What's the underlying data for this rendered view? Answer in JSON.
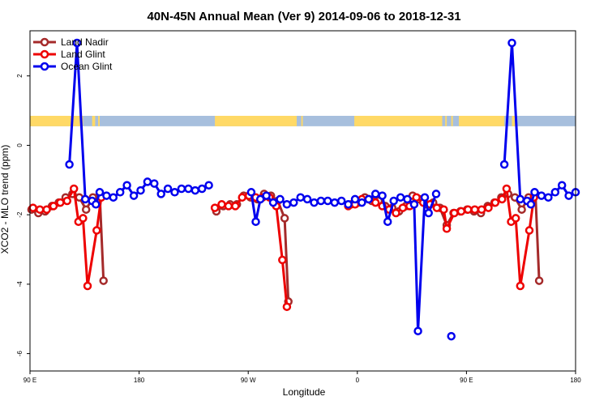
{
  "chart_data": {
    "type": "line",
    "title": "40N-45N Annual Mean (Ver 9)   2014-09-06 to 2018-12-31",
    "xlabel": "Longitude",
    "ylabel": "XCO2 - MLO trend (ppm)",
    "xlim": [
      -90,
      270
    ],
    "ylim": [
      -6.5,
      3.3
    ],
    "x_ticks": [
      {
        "value": -90,
        "label": "90 E"
      },
      {
        "value": -18,
        "label": "180"
      },
      {
        "value": 54,
        "label": "90 W"
      },
      {
        "value": 126,
        "label": "0"
      },
      {
        "value": 198,
        "label": "90 E"
      },
      {
        "value": 270,
        "label": "180"
      }
    ],
    "y_ticks": [
      {
        "value": 2,
        "label": "2"
      },
      {
        "value": 0,
        "label": "0"
      },
      {
        "value": -2,
        "label": "-2"
      },
      {
        "value": -4,
        "label": "-4"
      },
      {
        "value": -6,
        "label": "-6"
      }
    ],
    "legend": [
      "Land Nadir",
      "Land Glint",
      "Ocean Glint"
    ],
    "legend_position": "top-left",
    "land_band": {
      "y_range": [
        0.55,
        0.85
      ],
      "land_color": "#FFD966",
      "ocean_color": "#A7BFDD",
      "land_segments": [
        [
          -90,
          -55
        ],
        [
          -49,
          -47
        ],
        [
          -45,
          -44
        ],
        [
          32,
          86
        ],
        [
          89,
          90
        ],
        [
          124,
          182
        ],
        [
          184,
          185
        ],
        [
          188,
          189
        ],
        [
          193,
          223
        ],
        [
          228,
          230
        ]
      ]
    },
    "series": [
      {
        "name": "Land Nadir",
        "color": "#A52A2A",
        "points": [
          [
            -89,
            -1.85
          ],
          [
            -84.5,
            -1.95
          ],
          [
            -80,
            -1.9
          ],
          [
            -75.5,
            -1.75
          ],
          [
            -71,
            -1.65
          ],
          [
            -66.5,
            -1.5
          ],
          [
            -62,
            -1.4
          ],
          [
            -57.5,
            -1.5
          ],
          [
            -53,
            -1.85
          ],
          [
            -48.5,
            -1.5
          ],
          [
            -44,
            -1.4
          ],
          [
            -41.5,
            -3.9
          ],
          null,
          [
            33,
            -1.9
          ],
          [
            37.5,
            -1.75
          ],
          [
            42,
            -1.7
          ],
          [
            46.5,
            -1.7
          ],
          [
            51,
            -1.45
          ],
          [
            55.5,
            -1.5
          ],
          [
            60,
            -1.55
          ],
          [
            64.5,
            -1.4
          ],
          [
            69,
            -1.45
          ],
          [
            73.5,
            -1.6
          ],
          [
            78,
            -2.1
          ],
          [
            80.5,
            -4.5
          ],
          null,
          [
            122,
            -1.7
          ],
          [
            126.5,
            -1.65
          ],
          [
            131,
            -1.5
          ],
          [
            135.5,
            -1.6
          ],
          [
            140,
            -1.6
          ],
          [
            144.5,
            -1.75
          ],
          [
            149,
            -1.8
          ],
          [
            153.5,
            -1.9
          ],
          [
            158,
            -1.75
          ],
          [
            162.5,
            -1.45
          ],
          [
            167,
            -1.55
          ],
          [
            171.5,
            -1.7
          ],
          [
            176,
            -1.65
          ],
          [
            180.5,
            -1.8
          ],
          [
            185,
            -2.3
          ],
          [
            189.5,
            -1.95
          ],
          [
            194,
            -1.9
          ],
          [
            198.5,
            -1.85
          ],
          [
            203,
            -1.9
          ],
          [
            207.5,
            -1.95
          ],
          [
            212,
            -1.75
          ],
          [
            216.5,
            -1.65
          ],
          [
            221,
            -1.5
          ],
          [
            225.5,
            -1.4
          ],
          [
            230,
            -1.5
          ],
          [
            234.5,
            -1.85
          ],
          [
            239,
            -1.5
          ],
          [
            243.5,
            -1.4
          ],
          [
            246,
            -3.9
          ]
        ]
      },
      {
        "name": "Land Glint",
        "color": "#EE0000",
        "points": [
          [
            -88,
            -1.8
          ],
          [
            -83.5,
            -1.85
          ],
          [
            -79,
            -1.85
          ],
          [
            -74.5,
            -1.75
          ],
          [
            -70,
            -1.65
          ],
          [
            -65.5,
            -1.6
          ],
          [
            -61,
            -1.25
          ],
          [
            -58,
            -2.2
          ],
          [
            -55,
            -2.1
          ],
          [
            -52,
            -4.05
          ],
          [
            -46,
            -2.45
          ],
          [
            -43,
            -1.5
          ],
          null,
          [
            32,
            -1.8
          ],
          [
            36.5,
            -1.7
          ],
          [
            41,
            -1.75
          ],
          [
            45.5,
            -1.75
          ],
          [
            50,
            -1.5
          ],
          [
            54.5,
            -1.45
          ],
          [
            59,
            -1.5
          ],
          [
            63.5,
            -1.5
          ],
          [
            68,
            -1.5
          ],
          [
            72.5,
            -1.75
          ],
          [
            76.5,
            -3.3
          ],
          [
            79.5,
            -4.65
          ],
          null,
          [
            120,
            -1.75
          ],
          [
            124.5,
            -1.7
          ],
          [
            129,
            -1.55
          ],
          [
            133.5,
            -1.55
          ],
          [
            138,
            -1.65
          ],
          [
            142.5,
            -1.75
          ],
          [
            147,
            -1.85
          ],
          [
            151.5,
            -1.95
          ],
          [
            156,
            -1.8
          ],
          [
            160.5,
            -1.75
          ],
          [
            165,
            -1.5
          ],
          [
            169.5,
            -1.65
          ],
          [
            174,
            -1.7
          ],
          [
            178.5,
            -1.8
          ],
          [
            183,
            -1.85
          ],
          [
            185,
            -2.4
          ],
          [
            190,
            -1.95
          ],
          [
            194.5,
            -1.9
          ],
          [
            199,
            -1.85
          ],
          [
            203.5,
            -1.85
          ],
          [
            208,
            -1.85
          ],
          [
            212.5,
            -1.8
          ],
          [
            217,
            -1.65
          ],
          [
            221.5,
            -1.55
          ],
          [
            224.5,
            -1.25
          ],
          [
            227.5,
            -2.2
          ],
          [
            230.5,
            -2.1
          ],
          [
            233.5,
            -4.05
          ],
          [
            239.5,
            -2.45
          ],
          [
            242.5,
            -1.5
          ]
        ]
      },
      {
        "name": "Ocean Glint",
        "color": "#0000EE",
        "points": [
          [
            -64,
            -0.55
          ],
          [
            -59,
            2.95
          ],
          [
            -53.5,
            -1.55
          ],
          [
            -49,
            -1.6
          ],
          [
            -46.5,
            -1.7
          ],
          [
            -44,
            -1.35
          ],
          [
            -39.5,
            -1.45
          ],
          [
            -35,
            -1.5
          ],
          [
            -30.5,
            -1.35
          ],
          [
            -26,
            -1.15
          ],
          [
            -21.5,
            -1.45
          ],
          [
            -17,
            -1.3
          ],
          [
            -12.5,
            -1.05
          ],
          [
            -8,
            -1.1
          ],
          [
            -3.5,
            -1.4
          ],
          [
            1,
            -1.25
          ],
          [
            5.5,
            -1.35
          ],
          [
            10,
            -1.25
          ],
          [
            14.5,
            -1.25
          ],
          [
            19,
            -1.3
          ],
          [
            23.5,
            -1.25
          ],
          [
            28,
            -1.15
          ],
          null,
          [
            56,
            -1.35
          ],
          [
            59,
            -2.2
          ],
          [
            62,
            -1.55
          ],
          [
            66,
            -1.45
          ],
          [
            70.5,
            -1.65
          ],
          [
            75,
            -1.55
          ],
          [
            79.5,
            -1.7
          ],
          [
            84,
            -1.65
          ],
          [
            88.5,
            -1.5
          ],
          [
            93,
            -1.55
          ],
          [
            97.5,
            -1.65
          ],
          [
            102,
            -1.6
          ],
          [
            106.5,
            -1.6
          ],
          [
            111,
            -1.65
          ],
          [
            115.5,
            -1.6
          ],
          [
            120,
            -1.7
          ],
          [
            124.5,
            -1.55
          ],
          [
            129,
            -1.65
          ],
          [
            133.5,
            -1.55
          ],
          [
            138,
            -1.4
          ],
          [
            142.5,
            -1.45
          ],
          [
            146,
            -2.2
          ],
          [
            150,
            -1.6
          ],
          [
            154.5,
            -1.5
          ],
          [
            159,
            -1.55
          ],
          [
            163.5,
            -1.7
          ],
          [
            166,
            -5.35
          ],
          [
            170.5,
            -1.5
          ],
          [
            173,
            -1.95
          ],
          [
            178,
            -1.4
          ],
          null,
          [
            188,
            -5.5
          ],
          null,
          [
            223,
            -0.55
          ],
          [
            228,
            2.95
          ],
          [
            233.5,
            -1.55
          ],
          [
            238,
            -1.6
          ],
          [
            240.5,
            -1.7
          ],
          [
            243,
            -1.35
          ],
          [
            247.5,
            -1.45
          ],
          [
            252,
            -1.5
          ],
          [
            256.5,
            -1.35
          ],
          [
            261,
            -1.15
          ],
          [
            265.5,
            -1.45
          ],
          [
            270,
            -1.35
          ]
        ]
      }
    ]
  }
}
